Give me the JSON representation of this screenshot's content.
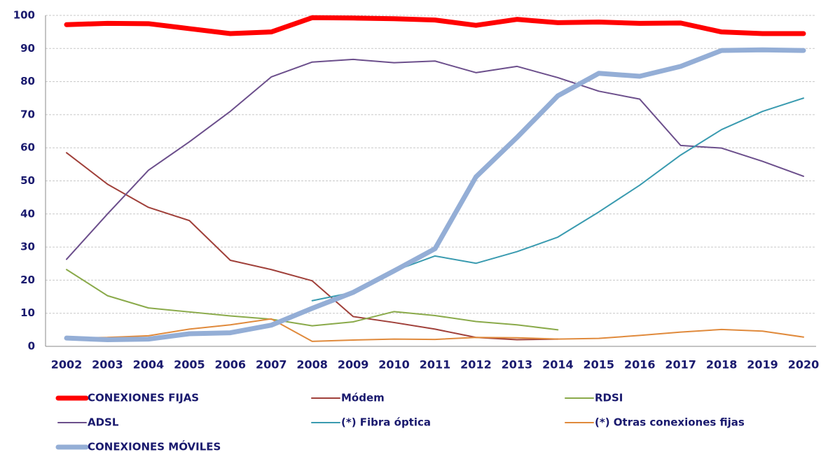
{
  "chart_data": {
    "type": "line",
    "categories": [
      "2002",
      "2003",
      "2004",
      "2005",
      "2006",
      "2007",
      "2008",
      "2009",
      "2010",
      "2011",
      "2012",
      "2013",
      "2014",
      "2015",
      "2016",
      "2017",
      "2018",
      "2019",
      "2020"
    ],
    "series": [
      {
        "name": "CONEXIONES FIJAS",
        "color": "#ff0000",
        "values": [
          97.2,
          97.6,
          97.5,
          96,
          94.5,
          95,
          99.3,
          99.2,
          99,
          98.6,
          97,
          98.8,
          97.8,
          98,
          97.6,
          97.7,
          95,
          94.5,
          94.5
        ]
      },
      {
        "name": "Módem",
        "color": "#a0403a",
        "values": [
          58.5,
          49,
          42,
          38,
          26,
          23.2,
          19.8,
          9,
          7.2,
          5.2,
          2.7,
          2,
          2.2,
          null,
          null,
          null,
          null,
          null,
          null
        ]
      },
      {
        "name": "RDSI",
        "color": "#8aaa4a",
        "values": [
          23.2,
          15.3,
          11.6,
          10.4,
          9.2,
          8.2,
          6.2,
          7.4,
          10.5,
          9.3,
          7.5,
          6.5,
          5,
          null,
          null,
          null,
          null,
          null,
          null
        ]
      },
      {
        "name": "ADSL",
        "color": "#6c4f8c",
        "values": [
          26.3,
          40,
          53.2,
          61.8,
          71,
          81.4,
          85.9,
          86.7,
          85.7,
          86.2,
          82.7,
          84.6,
          81.2,
          77.1,
          74.7,
          60.7,
          59.9,
          55.9,
          51.4
        ]
      },
      {
        "name": "(*) Fibra óptica",
        "color": "#3a9bb0",
        "values": [
          null,
          null,
          null,
          null,
          null,
          null,
          13.8,
          16.3,
          22.8,
          27.3,
          25.1,
          28.6,
          33,
          40.6,
          48.7,
          57.8,
          65.5,
          71,
          75
        ]
      },
      {
        "name": "(*) Otras conexiones fijas",
        "color": "#e08a3c",
        "values": [
          2.5,
          2.7,
          3.2,
          5.2,
          6.5,
          8.3,
          1.5,
          1.9,
          2.2,
          2.1,
          2.7,
          2.6,
          2.2,
          2.4,
          3.3,
          4.3,
          5.1,
          4.6,
          2.8
        ]
      },
      {
        "name": "CONEXIONES MÓVILES",
        "color": "#94aed6",
        "values": [
          2.5,
          2,
          2.2,
          3.8,
          4.1,
          6.4,
          11.5,
          16.3,
          22.8,
          29.5,
          51.2,
          63.1,
          75.7,
          82.5,
          81.6,
          84.6,
          89.4,
          89.6,
          89.4
        ]
      }
    ],
    "ylim": [
      0,
      100
    ],
    "yticks": [
      0,
      10,
      20,
      30,
      40,
      50,
      60,
      70,
      80,
      90,
      100
    ],
    "grid": true
  }
}
